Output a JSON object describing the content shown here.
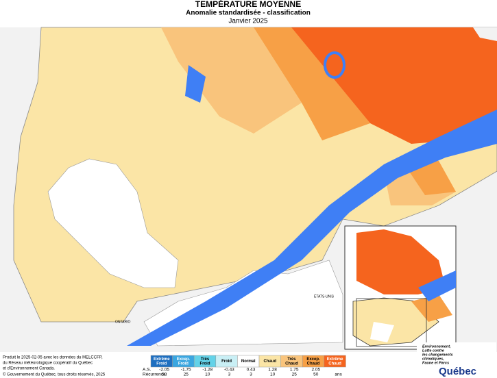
{
  "header": {
    "title": "TEMPÉRATURE MOYENNE",
    "subtitle": "Anomalie standardisée - classification",
    "date": "Janvier 2025"
  },
  "map": {
    "labels": [
      "ONTARIO",
      "ÉTATS-UNIS"
    ]
  },
  "legend": {
    "classes": [
      {
        "lines": [
          "Extrême",
          "Froid"
        ],
        "color": "#1f6fc0"
      },
      {
        "lines": [
          "Excep.",
          "Froid"
        ],
        "color": "#3aa6e0"
      },
      {
        "lines": [
          "Très",
          "Froid"
        ],
        "color": "#63d2e8"
      },
      {
        "lines": [
          "Froid"
        ],
        "color": "#c9eff5"
      },
      {
        "lines": [
          "Normal"
        ],
        "color": "#ffffff"
      },
      {
        "lines": [
          "Chaud"
        ],
        "color": "#fbe5a6"
      },
      {
        "lines": [
          "Très",
          "Chaud"
        ],
        "color": "#f9c47c"
      },
      {
        "lines": [
          "Excep.",
          "Chaud"
        ],
        "color": "#f7a046"
      },
      {
        "lines": [
          "Extrême",
          "Chaud"
        ],
        "color": "#f5641e"
      }
    ],
    "as_label": "A.S.",
    "as_values": [
      -2.05,
      -1.75,
      -1.28,
      -0.43,
      0.43,
      1.28,
      1.75,
      2.05
    ],
    "recurrence_label": "Récurrence:",
    "recurrence_values": [
      50,
      25,
      10,
      3,
      3,
      10,
      25,
      50
    ],
    "recurrence_unit": "ans"
  },
  "credits": {
    "lines": [
      "Produit le 2025-02-05 avec les données du MELCCFP,",
      "du Réseau météorologique coopératif du Québec",
      "et d'Environnement Canada."
    ],
    "copyright": "© Gouvernement du Québec, tous droits réservés, 2025"
  },
  "logo": {
    "lines": [
      "Environnement,",
      "Lutte contre",
      "les changements",
      "climatiques,",
      "Faune et Parcs"
    ],
    "name": "Québec"
  }
}
